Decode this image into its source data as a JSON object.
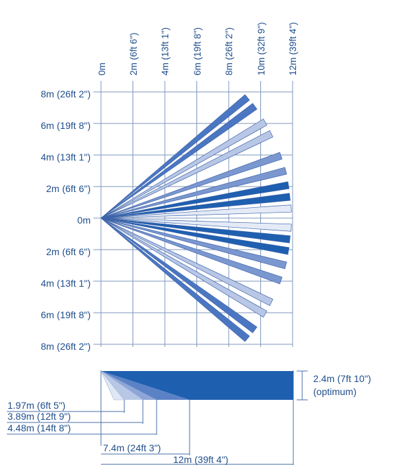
{
  "colors": {
    "text": "#1f4e8c",
    "grid": "#7f97bd",
    "ray_dark": "#1f5fb0",
    "ray_mid": "#4b77c2",
    "ray_medium": "#7b97cf",
    "ray_light": "#b8c7e6",
    "ray_pale": "#e4ebf7",
    "ray_stroke": "#3d63a8",
    "side_dark": "#1f5fb0"
  },
  "plan_view": {
    "x_axis_labels": [
      "0m",
      "2m (6ft 6\")",
      "4m (13ft 1\")",
      "6m (19ft 8\")",
      "8m (26ft 2\")",
      "10m (32ft 9\")",
      "12m (39ft 4\")"
    ],
    "y_axis_labels": [
      "8m (26ft 2\")",
      "6m (19ft 8\")",
      "4m (13ft 1\")",
      "2m (6ft 6\")",
      "0m",
      "2m (6ft 6\")",
      "4m (13ft 1\")",
      "6m (19ft 8\")",
      "8m (26ft 2\")"
    ]
  },
  "side_view": {
    "height_label_line1": "2.4m (7ft 10\")",
    "height_label_line2": "(optimum)",
    "distance_labels": [
      "1.97m (6ft 5\")",
      "3.89m (12ft 9\")",
      "4.48m (14ft 8\")",
      "7.4m (24ft 3\")",
      "12m (39ft 4\")"
    ]
  }
}
